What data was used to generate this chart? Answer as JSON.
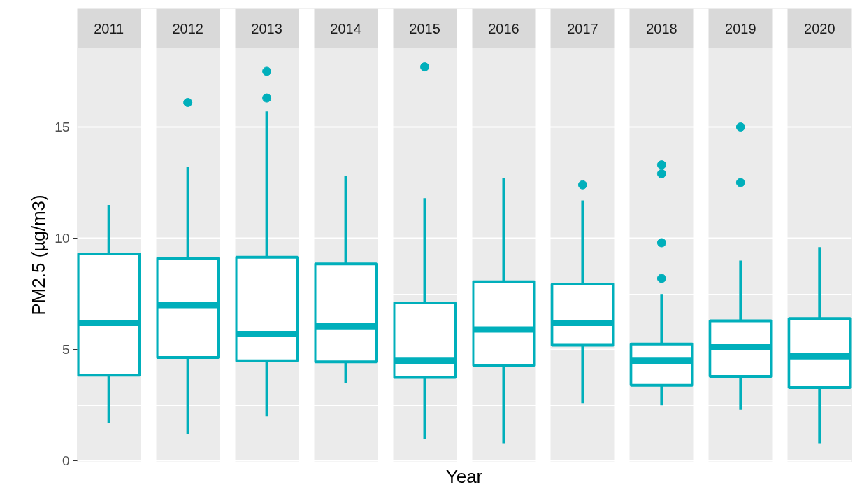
{
  "chart_data": {
    "type": "box",
    "xlabel": "Year",
    "ylabel": "PM2.5 (µg/m3)",
    "categories": [
      "2011",
      "2012",
      "2013",
      "2014",
      "2015",
      "2016",
      "2017",
      "2018",
      "2019",
      "2020"
    ],
    "color": "#00afbb",
    "boxes": [
      {
        "low": 1.7,
        "q1": 3.85,
        "median": 6.2,
        "q3": 9.3,
        "high": 11.5
      },
      {
        "low": 1.2,
        "q1": 4.65,
        "median": 7.0,
        "q3": 9.1,
        "high": 13.2,
        "outliers": [
          16.1
        ]
      },
      {
        "low": 2.0,
        "q1": 4.5,
        "median": 5.7,
        "q3": 9.15,
        "high": 15.7,
        "outliers": [
          17.5,
          16.3
        ]
      },
      {
        "low": 3.5,
        "q1": 4.45,
        "median": 6.05,
        "q3": 8.85,
        "high": 12.8
      },
      {
        "low": 1.0,
        "q1": 3.75,
        "median": 4.5,
        "q3": 7.1,
        "high": 11.8,
        "outliers": [
          17.7
        ]
      },
      {
        "low": 0.8,
        "q1": 4.3,
        "median": 5.9,
        "q3": 8.05,
        "high": 12.7
      },
      {
        "low": 2.6,
        "q1": 5.2,
        "median": 6.2,
        "q3": 7.95,
        "high": 11.7,
        "outliers": [
          12.4
        ]
      },
      {
        "low": 2.5,
        "q1": 3.4,
        "median": 4.5,
        "q3": 5.25,
        "high": 7.5,
        "outliers": [
          13.3,
          12.9,
          9.8,
          8.2
        ]
      },
      {
        "low": 2.3,
        "q1": 3.8,
        "median": 5.1,
        "q3": 6.3,
        "high": 9.0,
        "outliers": [
          15.0,
          12.5
        ]
      },
      {
        "low": 0.8,
        "q1": 3.3,
        "median": 4.7,
        "q3": 6.4,
        "high": 9.6
      }
    ],
    "ylim": [
      -0.05,
      18.55
    ],
    "yticks": [
      0,
      5,
      10,
      15
    ],
    "grid": "y"
  }
}
